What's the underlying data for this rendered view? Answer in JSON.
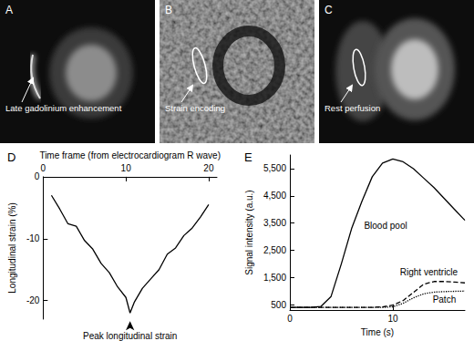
{
  "panels": [
    {
      "label": "A",
      "annotation": "Late gadolinium enhancement"
    },
    {
      "label": "B",
      "annotation": "Strain encoding"
    },
    {
      "label": "C",
      "annotation": "Rest perfusion"
    }
  ],
  "chart_data": [
    {
      "panel": "D",
      "type": "line",
      "x_label": "Time frame (from electrocardiogram R wave)",
      "y_label": "Longitudinal strain (%)",
      "x": [
        1,
        2,
        3,
        4,
        5,
        6,
        7,
        8,
        9,
        10,
        10.5,
        11,
        12,
        13,
        14,
        15,
        16,
        17,
        18,
        19,
        20
      ],
      "values": [
        -3,
        -5.2,
        -7.6,
        -8,
        -10.3,
        -11.7,
        -14,
        -15.5,
        -17.8,
        -19.5,
        -22,
        -20.3,
        -18,
        -16.5,
        -15,
        -12.5,
        -11.5,
        -9.5,
        -8.3,
        -6.5,
        -4.5
      ],
      "color": "#000000",
      "line_style": "solid",
      "xlim": [
        0,
        21
      ],
      "xticks": [
        0,
        10,
        20
      ],
      "ylim": [
        -23,
        0
      ],
      "yticks": [
        0,
        -10,
        -20
      ],
      "grid": false,
      "annotations": [
        {
          "text": "Peak longitudinal strain",
          "x": 10.5,
          "y": -22
        }
      ]
    },
    {
      "panel": "E",
      "type": "line",
      "x_label": "Time (s)",
      "y_label": "Signal intensity (a.u.)",
      "x": [
        0,
        1,
        2,
        3,
        4,
        5,
        6,
        7,
        8,
        9,
        10,
        11,
        12,
        13,
        14,
        15,
        16,
        17
      ],
      "series": [
        {
          "name": "Blood pool",
          "color": "#000000",
          "line_style": "solid",
          "label_x": 9.3,
          "label_y": 3400,
          "values": [
            400,
            400,
            400,
            430,
            800,
            2000,
            3300,
            4300,
            5200,
            5700,
            5850,
            5750,
            5500,
            5150,
            4800,
            4400,
            4000,
            3600
          ]
        },
        {
          "name": "Right ventricle",
          "color": "#000000",
          "line_style": "dashed",
          "label_x": 13.5,
          "label_y": 1700,
          "values": [
            400,
            400,
            400,
            400,
            400,
            400,
            400,
            400,
            400,
            420,
            480,
            650,
            950,
            1250,
            1350,
            1350,
            1330,
            1300
          ]
        },
        {
          "name": "Patch",
          "color": "#000000",
          "line_style": "dotted",
          "label_x": 15,
          "label_y": 700,
          "values": [
            400,
            400,
            400,
            400,
            400,
            400,
            400,
            400,
            400,
            400,
            420,
            550,
            750,
            900,
            960,
            980,
            990,
            1000
          ]
        }
      ],
      "xlim": [
        0,
        17
      ],
      "xticks": [
        0,
        10
      ],
      "ylim": [
        300,
        6000
      ],
      "yticks": [
        500,
        1500,
        2500,
        3500,
        4500,
        5500
      ],
      "grid": false
    }
  ]
}
